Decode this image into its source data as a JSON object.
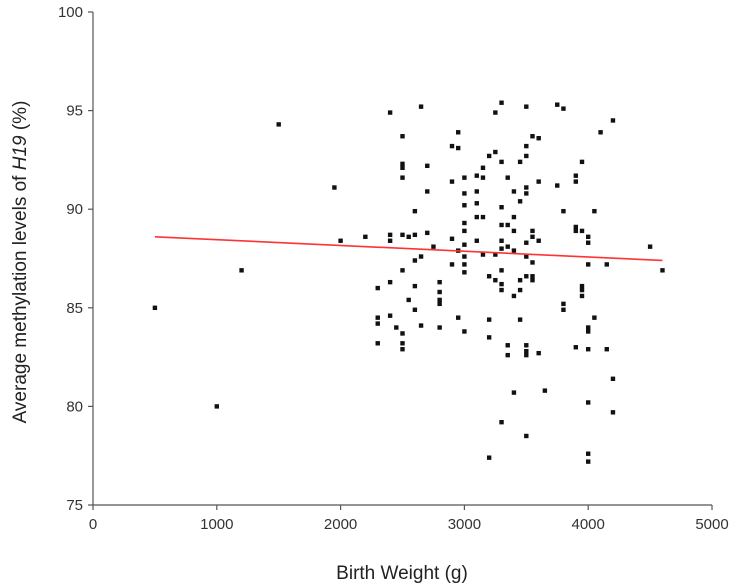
{
  "chart_data": {
    "type": "scatter",
    "xlabel": "Birth Weight (g)",
    "ylabel": {
      "prefix": "Average methylation levels of ",
      "gene": "H19",
      "suffix": " (%)"
    },
    "xlim": [
      0,
      5000
    ],
    "ylim": [
      75,
      100
    ],
    "x_ticks": [
      "0",
      "1000",
      "2000",
      "3000",
      "4000",
      "5000"
    ],
    "y_ticks": [
      "75",
      "80",
      "85",
      "90",
      "95",
      "100"
    ],
    "grid": false,
    "trendline": {
      "x": [
        500,
        4600
      ],
      "y": [
        88.6,
        87.4
      ],
      "color": "#ff3333"
    },
    "points": [
      [
        500,
        85.0
      ],
      [
        1000,
        80.0
      ],
      [
        1200,
        86.9
      ],
      [
        1500,
        94.3
      ],
      [
        1950,
        91.1
      ],
      [
        2000,
        88.4
      ],
      [
        2200,
        88.6
      ],
      [
        2300,
        86.0
      ],
      [
        2300,
        84.5
      ],
      [
        2300,
        84.2
      ],
      [
        2300,
        83.2
      ],
      [
        2400,
        94.9
      ],
      [
        2400,
        88.7
      ],
      [
        2400,
        88.4
      ],
      [
        2400,
        86.3
      ],
      [
        2400,
        84.6
      ],
      [
        2450,
        84.0
      ],
      [
        2500,
        93.7
      ],
      [
        2500,
        92.3
      ],
      [
        2500,
        92.1
      ],
      [
        2500,
        91.6
      ],
      [
        2500,
        88.7
      ],
      [
        2500,
        86.9
      ],
      [
        2500,
        83.7
      ],
      [
        2500,
        83.2
      ],
      [
        2500,
        82.9
      ],
      [
        2550,
        85.4
      ],
      [
        2550,
        88.6
      ],
      [
        2600,
        89.9
      ],
      [
        2600,
        88.7
      ],
      [
        2600,
        87.4
      ],
      [
        2600,
        86.1
      ],
      [
        2600,
        84.9
      ],
      [
        2650,
        95.2
      ],
      [
        2650,
        87.6
      ],
      [
        2650,
        84.1
      ],
      [
        2700,
        92.2
      ],
      [
        2700,
        90.9
      ],
      [
        2700,
        88.8
      ],
      [
        2750,
        88.1
      ],
      [
        2800,
        86.3
      ],
      [
        2800,
        85.8
      ],
      [
        2800,
        85.4
      ],
      [
        2800,
        85.2
      ],
      [
        2800,
        84.0
      ],
      [
        2900,
        93.2
      ],
      [
        2900,
        91.4
      ],
      [
        2900,
        88.5
      ],
      [
        2900,
        87.2
      ],
      [
        2950,
        93.9
      ],
      [
        2950,
        93.1
      ],
      [
        2950,
        84.5
      ],
      [
        2950,
        87.9
      ],
      [
        3000,
        91.6
      ],
      [
        3000,
        90.8
      ],
      [
        3000,
        90.2
      ],
      [
        3000,
        89.3
      ],
      [
        3000,
        88.9
      ],
      [
        3000,
        88.2
      ],
      [
        3000,
        87.6
      ],
      [
        3000,
        87.2
      ],
      [
        3000,
        86.8
      ],
      [
        3000,
        83.8
      ],
      [
        3100,
        91.7
      ],
      [
        3100,
        90.9
      ],
      [
        3100,
        90.3
      ],
      [
        3100,
        89.6
      ],
      [
        3100,
        88.4
      ],
      [
        3150,
        92.1
      ],
      [
        3150,
        91.6
      ],
      [
        3150,
        89.6
      ],
      [
        3150,
        87.7
      ],
      [
        3200,
        92.7
      ],
      [
        3200,
        86.6
      ],
      [
        3200,
        84.4
      ],
      [
        3200,
        83.5
      ],
      [
        3200,
        77.4
      ],
      [
        3250,
        94.9
      ],
      [
        3250,
        92.9
      ],
      [
        3250,
        86.4
      ],
      [
        3250,
        87.7
      ],
      [
        3300,
        95.4
      ],
      [
        3300,
        92.4
      ],
      [
        3300,
        90.1
      ],
      [
        3300,
        89.2
      ],
      [
        3300,
        88.4
      ],
      [
        3300,
        88.0
      ],
      [
        3300,
        86.9
      ],
      [
        3300,
        86.2
      ],
      [
        3300,
        85.9
      ],
      [
        3300,
        79.2
      ],
      [
        3350,
        91.6
      ],
      [
        3350,
        89.2
      ],
      [
        3350,
        88.1
      ],
      [
        3350,
        83.1
      ],
      [
        3350,
        82.6
      ],
      [
        3400,
        90.9
      ],
      [
        3400,
        89.6
      ],
      [
        3400,
        88.9
      ],
      [
        3400,
        87.9
      ],
      [
        3400,
        85.6
      ],
      [
        3400,
        80.7
      ],
      [
        3450,
        92.4
      ],
      [
        3450,
        90.4
      ],
      [
        3450,
        86.4
      ],
      [
        3450,
        85.9
      ],
      [
        3450,
        84.4
      ],
      [
        3500,
        95.2
      ],
      [
        3500,
        93.2
      ],
      [
        3500,
        92.7
      ],
      [
        3500,
        91.1
      ],
      [
        3500,
        90.8
      ],
      [
        3500,
        88.3
      ],
      [
        3500,
        87.6
      ],
      [
        3500,
        86.6
      ],
      [
        3500,
        83.1
      ],
      [
        3500,
        82.8
      ],
      [
        3500,
        82.6
      ],
      [
        3500,
        78.5
      ],
      [
        3550,
        93.7
      ],
      [
        3550,
        88.9
      ],
      [
        3550,
        88.6
      ],
      [
        3550,
        87.3
      ],
      [
        3550,
        86.6
      ],
      [
        3550,
        86.4
      ],
      [
        3600,
        93.6
      ],
      [
        3600,
        91.4
      ],
      [
        3600,
        88.4
      ],
      [
        3600,
        82.7
      ],
      [
        3650,
        80.8
      ],
      [
        3750,
        95.3
      ],
      [
        3750,
        91.2
      ],
      [
        3800,
        95.1
      ],
      [
        3800,
        89.9
      ],
      [
        3800,
        85.2
      ],
      [
        3800,
        84.9
      ],
      [
        3900,
        91.7
      ],
      [
        3900,
        91.4
      ],
      [
        3900,
        89.1
      ],
      [
        3900,
        88.9
      ],
      [
        3900,
        83.0
      ],
      [
        3950,
        92.4
      ],
      [
        3950,
        88.9
      ],
      [
        3950,
        86.1
      ],
      [
        3950,
        85.9
      ],
      [
        3950,
        85.6
      ],
      [
        4000,
        88.6
      ],
      [
        4000,
        88.3
      ],
      [
        4000,
        87.2
      ],
      [
        4000,
        84.0
      ],
      [
        4000,
        83.8
      ],
      [
        4000,
        82.9
      ],
      [
        4000,
        80.2
      ],
      [
        4000,
        77.6
      ],
      [
        4000,
        77.2
      ],
      [
        4050,
        89.9
      ],
      [
        4050,
        84.5
      ],
      [
        4100,
        93.9
      ],
      [
        4150,
        87.2
      ],
      [
        4150,
        82.9
      ],
      [
        4200,
        94.5
      ],
      [
        4200,
        81.4
      ],
      [
        4200,
        79.7
      ],
      [
        4500,
        88.1
      ],
      [
        4600,
        86.9
      ]
    ]
  }
}
